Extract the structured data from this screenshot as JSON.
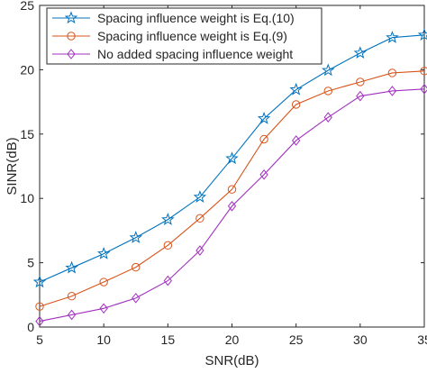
{
  "chart_data": {
    "type": "line",
    "title": "",
    "xlabel": "SNR(dB)",
    "ylabel": "SINR(dB)",
    "xlim": [
      5,
      35
    ],
    "ylim": [
      0,
      25
    ],
    "xticks": [
      "5",
      "10",
      "15",
      "20",
      "25",
      "30",
      "35"
    ],
    "yticks": [
      "0",
      "5",
      "10",
      "15",
      "20",
      "25"
    ],
    "grid": false,
    "legend_position": "top-left",
    "x": [
      5,
      7.5,
      10,
      12.5,
      15,
      17.5,
      20,
      22.5,
      25,
      27.5,
      30,
      32.5,
      35
    ],
    "series": [
      {
        "name": "Spacing influence weight is Eq.(10)",
        "color": "#0072BD",
        "marker": "pentagram",
        "values": [
          3.5,
          4.6,
          5.7,
          6.95,
          8.35,
          10.1,
          13.1,
          16.2,
          18.45,
          19.95,
          21.3,
          22.5,
          22.7
        ]
      },
      {
        "name": "Spacing influence weight is Eq.(9)",
        "color": "#D95319",
        "marker": "circle",
        "values": [
          1.6,
          2.4,
          3.5,
          4.65,
          6.35,
          8.45,
          10.7,
          14.6,
          17.3,
          18.35,
          19.05,
          19.75,
          19.9
        ]
      },
      {
        "name": "No added spacing influence weight",
        "color": "#A02FBE",
        "marker": "diamond",
        "values": [
          0.45,
          0.95,
          1.45,
          2.25,
          3.6,
          5.95,
          9.4,
          11.85,
          14.5,
          16.3,
          17.95,
          18.35,
          18.5
        ]
      }
    ]
  }
}
